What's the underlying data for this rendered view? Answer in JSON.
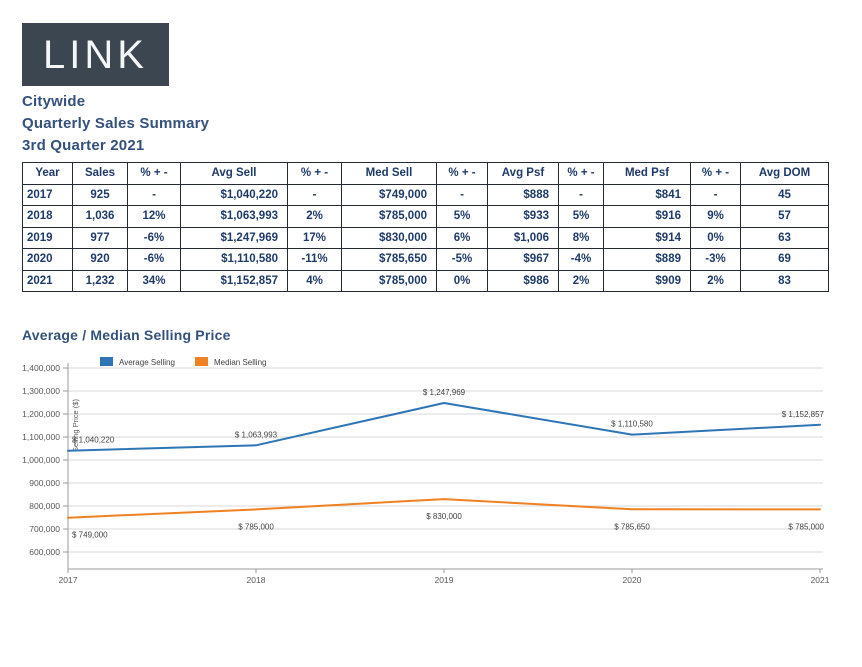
{
  "logo": {
    "text": "LINK",
    "bg_color": "#3b4650"
  },
  "header": {
    "region": "Citywide",
    "title": "Quarterly Sales Summary",
    "period": "3rd Quarter 2021"
  },
  "table": {
    "columns": [
      "Year",
      "Sales",
      "% + -",
      "Avg Sell",
      "% + -",
      "Med Sell",
      "% + -",
      "Avg Psf",
      "% + -",
      "Med Psf",
      "% + -",
      "Avg DOM"
    ],
    "rows": [
      [
        "2017",
        "925",
        "-",
        "$1,040,220",
        "-",
        "$749,000",
        "-",
        "$888",
        "-",
        "$841",
        "-",
        "45"
      ],
      [
        "2018",
        "1,036",
        "12%",
        "$1,063,993",
        "2%",
        "$785,000",
        "5%",
        "$933",
        "5%",
        "$916",
        "9%",
        "57"
      ],
      [
        "2019",
        "977",
        "-6%",
        "$1,247,969",
        "17%",
        "$830,000",
        "6%",
        "$1,006",
        "8%",
        "$914",
        "0%",
        "63"
      ],
      [
        "2020",
        "920",
        "-6%",
        "$1,110,580",
        "-11%",
        "$785,650",
        "-5%",
        "$967",
        "-4%",
        "$889",
        "-3%",
        "69"
      ],
      [
        "2021",
        "1,232",
        "34%",
        "$1,152,857",
        "4%",
        "$785,000",
        "0%",
        "$986",
        "2%",
        "$909",
        "2%",
        "83"
      ]
    ]
  },
  "chart": {
    "title": "Average / Median Selling Price"
  },
  "chart_data": {
    "type": "line",
    "title": "Average / Median Selling Price",
    "x": [
      2017,
      2018,
      2019,
      2020,
      2021
    ],
    "series": [
      {
        "name": "Average Selling",
        "color": "#2e75b6",
        "values": [
          1040220,
          1063993,
          1247969,
          1110580,
          1152857
        ],
        "labels": [
          "$ 1,040,220",
          "$ 1,063,993",
          "$ 1,247,969",
          "$ 1,110,580",
          "$ 1,152,857"
        ]
      },
      {
        "name": "Median Selling",
        "color": "#f08122",
        "values": [
          749000,
          785000,
          830000,
          785650,
          785000
        ],
        "labels": [
          "$ 749,000",
          "$ 785,000",
          "$ 830,000",
          "$ 785,650",
          "$ 785,000"
        ]
      }
    ],
    "xlabel": "",
    "ylabel": "Selling Price ($)",
    "ylim": [
      600000,
      1400000
    ],
    "ytick_step": 100000,
    "grid": true,
    "legend_position": "top-left",
    "colors": {
      "grid": "#d9d9d9",
      "axis": "#9b9b9b",
      "tick_text": "#595959",
      "label_text": "#3f3f3f"
    }
  }
}
